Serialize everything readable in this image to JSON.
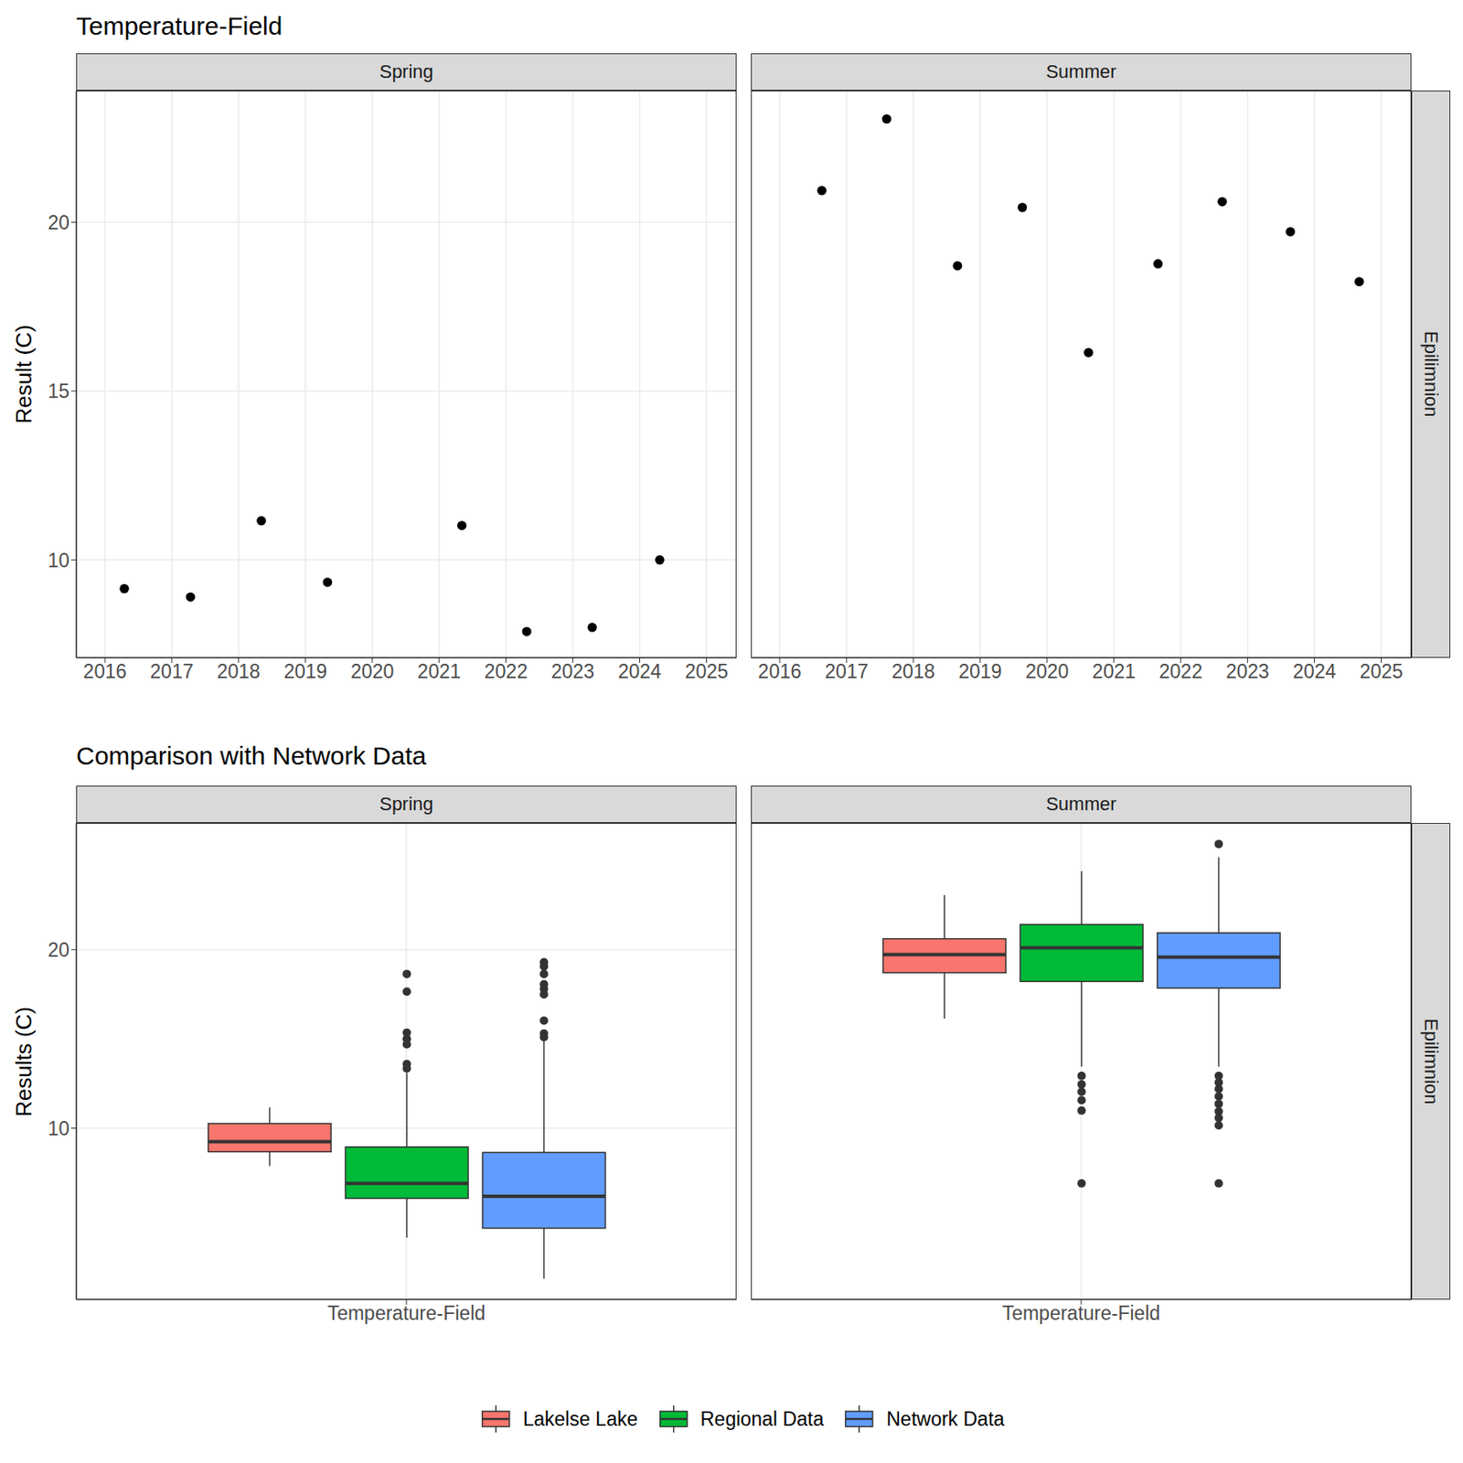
{
  "chart_data": [
    {
      "type": "scatter",
      "title": "Temperature-Field",
      "y_label": "Result (C)",
      "color": "#000000",
      "marker": "circle",
      "grid": true,
      "facet_row": "Epilimnion",
      "xlim": [
        2015.57,
        2025.45
      ],
      "xticks": [
        2016,
        2017,
        2018,
        2019,
        2020,
        2021,
        2022,
        2023,
        2024,
        2025
      ],
      "ylim": [
        7.1,
        23.9
      ],
      "yticks": [
        10,
        15,
        20
      ],
      "panels": [
        {
          "title": "Spring",
          "x": [
            2016.29,
            2017.28,
            2018.34,
            2019.33,
            2021.34,
            2022.31,
            2023.29,
            2024.3
          ],
          "values": [
            9.15,
            8.9,
            11.16,
            9.34,
            11.02,
            7.88,
            8.0,
            10.0
          ]
        },
        {
          "title": "Summer",
          "x": [
            2016.63,
            2017.6,
            2018.66,
            2019.63,
            2020.62,
            2021.66,
            2022.62,
            2023.64,
            2024.67
          ],
          "values": [
            20.94,
            23.06,
            18.71,
            20.44,
            16.14,
            18.77,
            20.61,
            19.72,
            18.24
          ]
        }
      ]
    },
    {
      "type": "box",
      "title": "Comparison with Network Data",
      "y_label": "Results (C)",
      "grid": true,
      "legend": "bottom",
      "facet_row": "Epilimnion",
      "categories": [
        "Temperature-Field"
      ],
      "ylim": [
        0.4,
        27.1
      ],
      "yticks": [
        10,
        20
      ],
      "series": [
        {
          "name": "Lakelse Lake",
          "color": "#F8766D"
        },
        {
          "name": "Regional Data",
          "color": "#00BA38"
        },
        {
          "name": "Network Data",
          "color": "#619CFF"
        }
      ],
      "panels": [
        {
          "title": "Spring",
          "boxes": [
            {
              "min": 7.88,
              "q1": 8.68,
              "median": 9.25,
              "q3": 10.26,
              "max": 11.16,
              "outliers": []
            },
            {
              "min": 3.87,
              "q1": 6.07,
              "median": 6.91,
              "q3": 8.95,
              "max": 13.1,
              "outliers": [
                18.64,
                17.65,
                15.35,
                15.0,
                14.7,
                13.6,
                13.35
              ]
            },
            {
              "min": 1.57,
              "q1": 4.4,
              "median": 6.18,
              "q3": 8.64,
              "max": 15.0,
              "outliers": [
                19.3,
                19.06,
                18.64,
                18.06,
                17.8,
                17.5,
                16.03,
                15.3,
                15.1
              ]
            }
          ]
        },
        {
          "title": "Summer",
          "boxes": [
            {
              "min": 16.14,
              "q1": 18.71,
              "median": 19.72,
              "q3": 20.61,
              "max": 23.06,
              "outliers": []
            },
            {
              "min": 13.45,
              "q1": 18.22,
              "median": 20.1,
              "q3": 21.41,
              "max": 24.4,
              "outliers": [
                12.93,
                12.46,
                12.04,
                11.57,
                10.99,
                6.91
              ]
            },
            {
              "min": 13.45,
              "q1": 17.85,
              "median": 19.58,
              "q3": 20.94,
              "max": 25.18,
              "outliers": [
                25.92,
                12.93,
                12.56,
                12.2,
                11.78,
                11.36,
                10.94,
                10.58,
                10.16,
                6.91
              ]
            }
          ]
        }
      ]
    }
  ]
}
